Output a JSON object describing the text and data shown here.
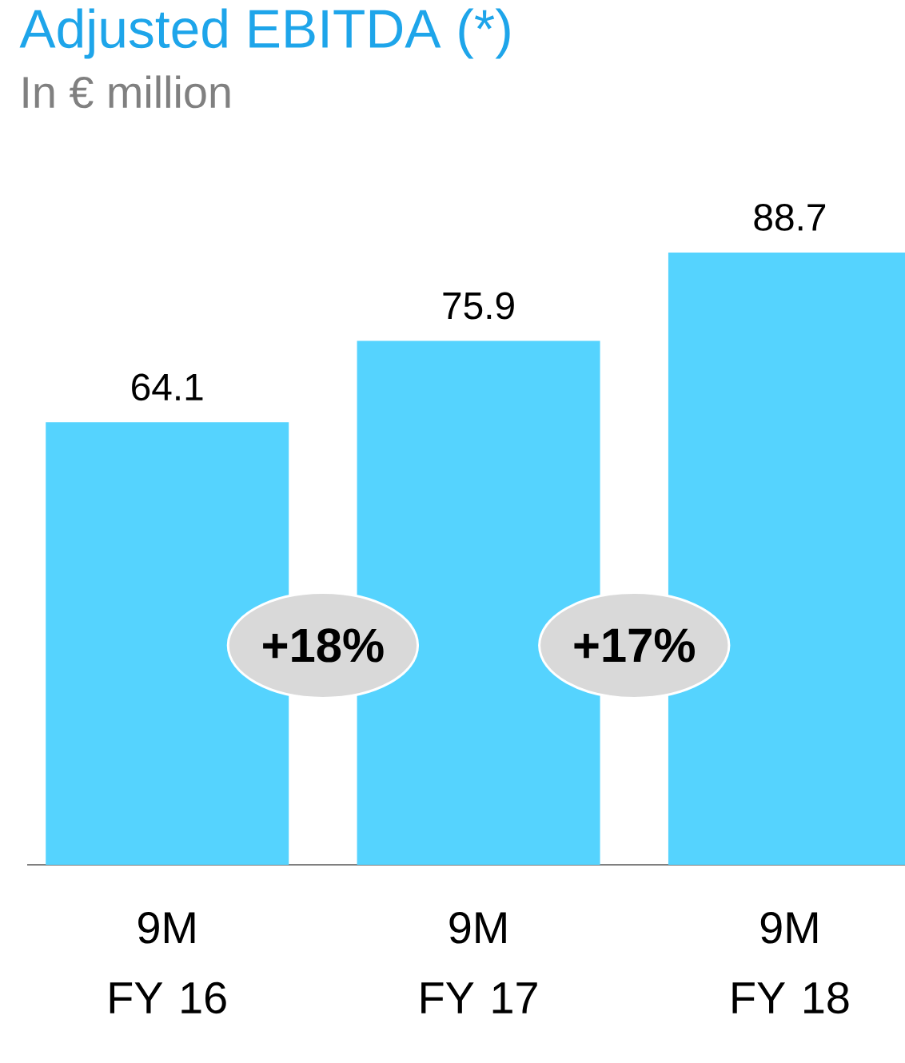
{
  "chart_data": {
    "type": "bar",
    "title": "Adjusted EBITDA (*)",
    "subtitle": "In € million",
    "categories": [
      "9M FY 16",
      "9M FY 17",
      "9M FY 18"
    ],
    "values": [
      64.1,
      75.9,
      88.7
    ],
    "color": "#55d3fe",
    "data_labels": true,
    "tick_labels": "x",
    "annotations": [
      "+18%",
      "+17%"
    ]
  }
}
